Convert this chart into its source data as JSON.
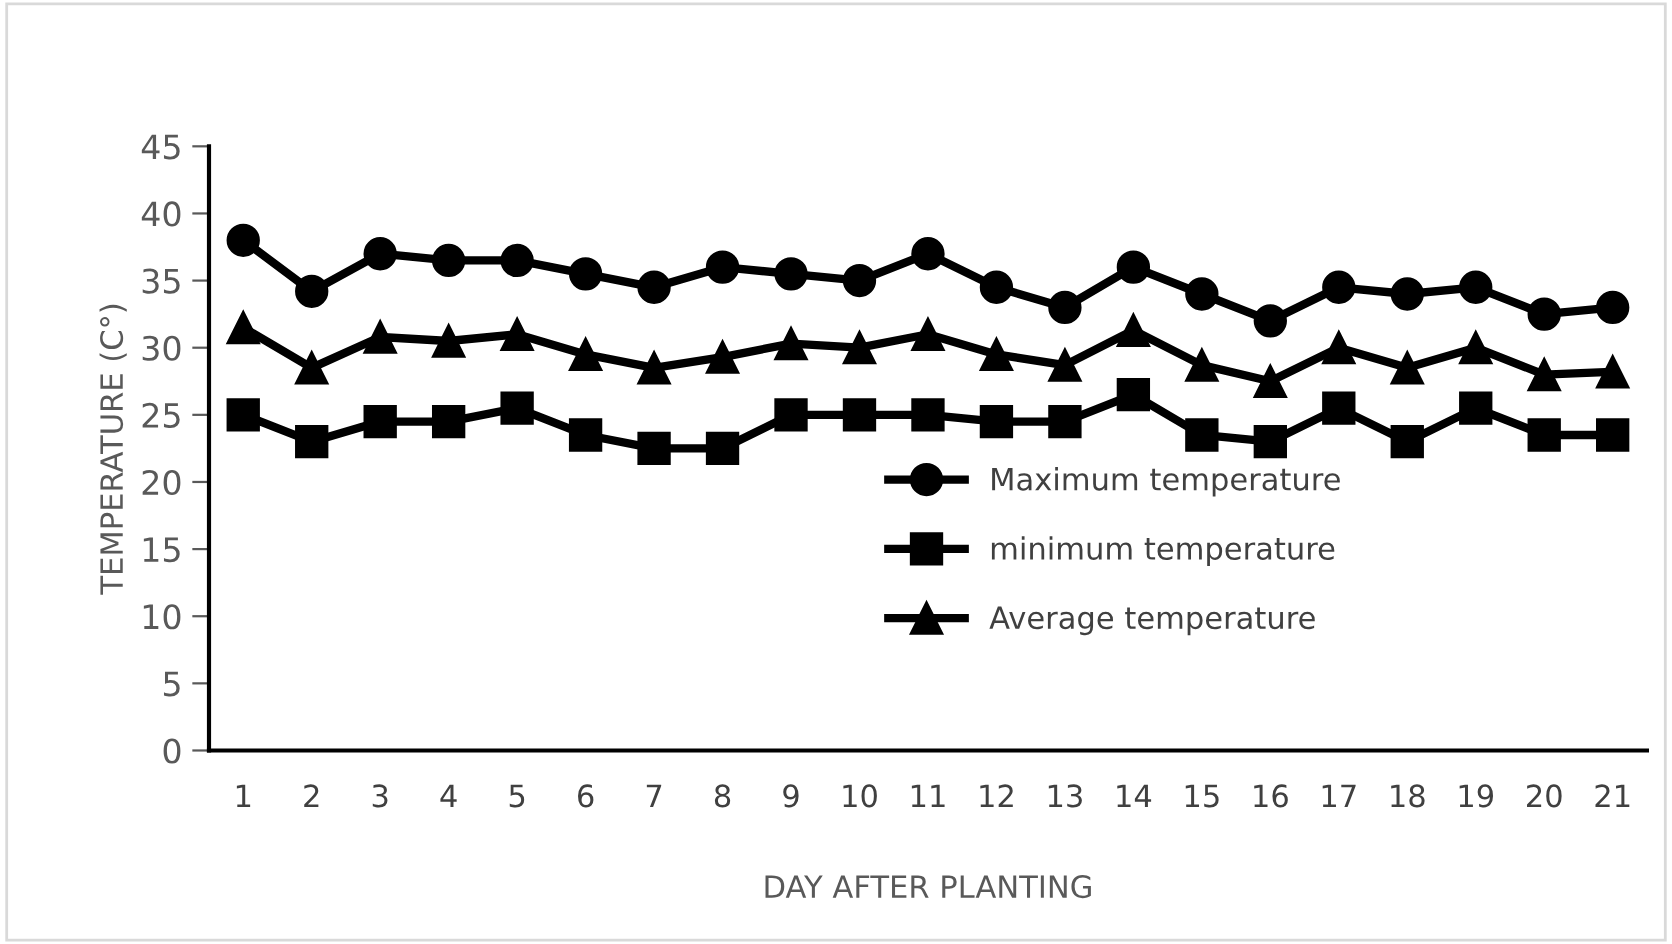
{
  "chart_data": {
    "type": "line",
    "xlabel": "DAY AFTER PLANTING",
    "ylabel": "TEMPERATURE (C°)",
    "categories": [
      "1",
      "2",
      "3",
      "4",
      "5",
      "6",
      "7",
      "8",
      "9",
      "10",
      "11",
      "12",
      "13",
      "14",
      "15",
      "16",
      "17",
      "18",
      "19",
      "20",
      "21"
    ],
    "series": [
      {
        "name": "Maximum temperature",
        "color": "#000000",
        "marker": "circle",
        "values": [
          38,
          34.2,
          37,
          36.5,
          36.5,
          35.5,
          34.5,
          36,
          35.5,
          35,
          37,
          34.5,
          33,
          36,
          34,
          32,
          34.5,
          34,
          34.5,
          32.5,
          33
        ]
      },
      {
        "name": "minimum temperature",
        "color": "#000000",
        "marker": "square",
        "values": [
          25,
          23,
          24.5,
          24.5,
          25.5,
          23.5,
          22.5,
          22.5,
          25,
          25,
          25,
          24.5,
          24.5,
          26.5,
          23.5,
          23,
          25.5,
          23,
          25.5,
          23.5,
          23.5
        ]
      },
      {
        "name": "Average temperature",
        "color": "#000000",
        "marker": "triangle",
        "values": [
          31.5,
          28.5,
          30.8,
          30.5,
          31,
          29.5,
          28.5,
          29.3,
          30.3,
          30,
          31,
          29.5,
          28.7,
          31.3,
          28.7,
          27.5,
          30,
          28.5,
          30,
          28,
          28.2
        ]
      }
    ],
    "ylim": [
      0,
      45
    ],
    "yticks": [
      0,
      5,
      10,
      15,
      20,
      25,
      30,
      35,
      40,
      45
    ],
    "grid": false,
    "legend": "center"
  }
}
